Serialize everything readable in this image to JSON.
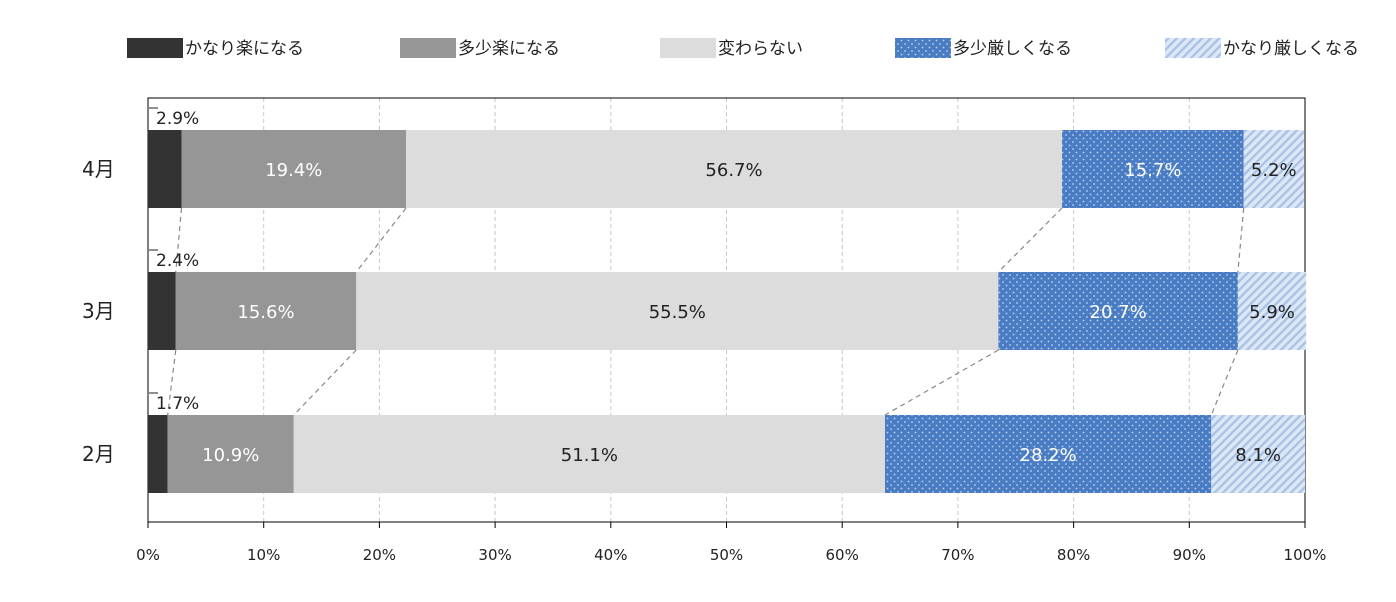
{
  "chart_data": {
    "type": "bar",
    "orientation": "horizontal",
    "stacked": true,
    "percent": true,
    "title": "",
    "categories": [
      "4月",
      "3月",
      "2月"
    ],
    "series": [
      {
        "name": "かなり楽になる",
        "values": [
          2.9,
          2.4,
          1.7
        ],
        "color": "#333333",
        "pattern": "solid"
      },
      {
        "name": "多少楽になる",
        "values": [
          19.4,
          15.6,
          10.9
        ],
        "color": "#969696",
        "pattern": "solid"
      },
      {
        "name": "変わらない",
        "values": [
          56.7,
          55.5,
          51.1
        ],
        "color": "#dcdcdc",
        "pattern": "solid"
      },
      {
        "name": "多少厳しくなる",
        "values": [
          15.7,
          20.7,
          28.2
        ],
        "color": "#4a7cc4",
        "pattern": "dots"
      },
      {
        "name": "かなり厳しくなる",
        "values": [
          5.2,
          5.9,
          8.1
        ],
        "color": "#c5d7ef",
        "pattern": "diagonal"
      }
    ],
    "xlim": [
      0,
      100
    ],
    "xticks": [
      "0%",
      "10%",
      "20%",
      "30%",
      "40%",
      "50%",
      "60%",
      "70%",
      "80%",
      "90%",
      "100%"
    ],
    "grid": true,
    "legend_position": "top",
    "series_connector_lines": true
  }
}
